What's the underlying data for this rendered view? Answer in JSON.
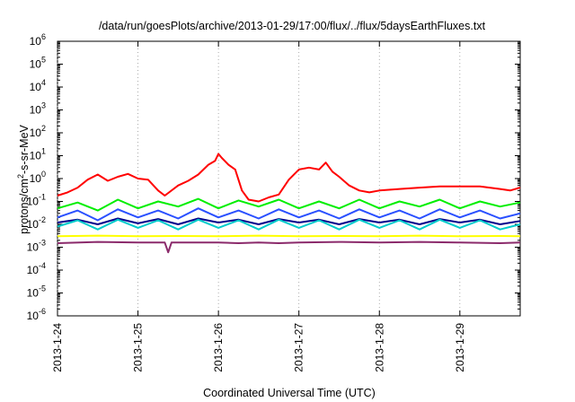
{
  "chart_data": {
    "type": "line",
    "title": "/data/run/goesPlots/archive/2013-01-29/17:00/flux/../flux/5daysEarthFluxes.txt",
    "xlabel": "Coordinated Universal Time (UTC)",
    "ylabel": {
      "base": "protons/cm",
      "sup": "2",
      "rest": "-s-sr-MeV"
    },
    "y_scale": "log",
    "xlim": [
      "2013-01-24T00:00",
      "2013-01-29T18:00"
    ],
    "ylim": [
      1e-06,
      1000000.0
    ],
    "x_ticks": [
      "2013-1-24",
      "2013-1-25",
      "2013-1-26",
      "2013-1-27",
      "2013-1-28",
      "2013-1-29"
    ],
    "y_ticks": [
      {
        "base": "10",
        "exp": "-6"
      },
      {
        "base": "10",
        "exp": "-5"
      },
      {
        "base": "10",
        "exp": "-4"
      },
      {
        "base": "10",
        "exp": "-3"
      },
      {
        "base": "10",
        "exp": "-2"
      },
      {
        "base": "10",
        "exp": "-1"
      },
      {
        "base": "10",
        "exp": "0"
      },
      {
        "base": "10",
        "exp": "1"
      },
      {
        "base": "10",
        "exp": "2"
      },
      {
        "base": "10",
        "exp": "3"
      },
      {
        "base": "10",
        "exp": "4"
      },
      {
        "base": "10",
        "exp": "5"
      },
      {
        "base": "10",
        "exp": "6"
      }
    ],
    "grid": "vertical dotted at day ticks",
    "legend": "none",
    "series": [
      {
        "color": "#ff0000",
        "points": [
          [
            "2013-01-24T00:00",
            0.18
          ],
          [
            "2013-01-24T03:00",
            0.25
          ],
          [
            "2013-01-24T06:00",
            0.4
          ],
          [
            "2013-01-24T09:00",
            0.9
          ],
          [
            "2013-01-24T12:00",
            1.5
          ],
          [
            "2013-01-24T15:00",
            0.8
          ],
          [
            "2013-01-24T18:00",
            1.2
          ],
          [
            "2013-01-24T21:00",
            1.6
          ],
          [
            "2013-01-25T00:00",
            1.0
          ],
          [
            "2013-01-25T03:00",
            0.9
          ],
          [
            "2013-01-25T06:00",
            0.3
          ],
          [
            "2013-01-25T08:00",
            0.18
          ],
          [
            "2013-01-25T12:00",
            0.5
          ],
          [
            "2013-01-25T15:00",
            0.8
          ],
          [
            "2013-01-25T18:00",
            1.5
          ],
          [
            "2013-01-25T21:00",
            4
          ],
          [
            "2013-01-25T23:00",
            6
          ],
          [
            "2013-01-26T00:00",
            12
          ],
          [
            "2013-01-26T01:00",
            8
          ],
          [
            "2013-01-26T03:00",
            4
          ],
          [
            "2013-01-26T05:00",
            2.5
          ],
          [
            "2013-01-26T07:00",
            0.3
          ],
          [
            "2013-01-26T09:00",
            0.12
          ],
          [
            "2013-01-26T12:00",
            0.1
          ],
          [
            "2013-01-26T15:00",
            0.15
          ],
          [
            "2013-01-26T18:00",
            0.2
          ],
          [
            "2013-01-26T21:00",
            0.9
          ],
          [
            "2013-01-27T00:00",
            2.5
          ],
          [
            "2013-01-27T03:00",
            3
          ],
          [
            "2013-01-27T06:00",
            2.5
          ],
          [
            "2013-01-27T08:00",
            5
          ],
          [
            "2013-01-27T10:00",
            2
          ],
          [
            "2013-01-27T12:00",
            1.2
          ],
          [
            "2013-01-27T15:00",
            0.5
          ],
          [
            "2013-01-27T18:00",
            0.3
          ],
          [
            "2013-01-27T21:00",
            0.25
          ],
          [
            "2013-01-28T00:00",
            0.3
          ],
          [
            "2013-01-28T06:00",
            0.35
          ],
          [
            "2013-01-28T12:00",
            0.4
          ],
          [
            "2013-01-28T18:00",
            0.45
          ],
          [
            "2013-01-29T00:00",
            0.45
          ],
          [
            "2013-01-29T06:00",
            0.45
          ],
          [
            "2013-01-29T12:00",
            0.35
          ],
          [
            "2013-01-29T15:00",
            0.3
          ],
          [
            "2013-01-29T18:00",
            0.4
          ]
        ]
      },
      {
        "color": "#00ee00",
        "points": [
          [
            "2013-01-24T00:00",
            0.05
          ],
          [
            "2013-01-24T06:00",
            0.09
          ],
          [
            "2013-01-24T12:00",
            0.04
          ],
          [
            "2013-01-24T18:00",
            0.12
          ],
          [
            "2013-01-25T00:00",
            0.05
          ],
          [
            "2013-01-25T06:00",
            0.1
          ],
          [
            "2013-01-25T12:00",
            0.06
          ],
          [
            "2013-01-25T18:00",
            0.13
          ],
          [
            "2013-01-26T00:00",
            0.05
          ],
          [
            "2013-01-26T06:00",
            0.11
          ],
          [
            "2013-01-26T12:00",
            0.06
          ],
          [
            "2013-01-26T18:00",
            0.12
          ],
          [
            "2013-01-27T00:00",
            0.05
          ],
          [
            "2013-01-27T06:00",
            0.1
          ],
          [
            "2013-01-27T12:00",
            0.05
          ],
          [
            "2013-01-27T18:00",
            0.12
          ],
          [
            "2013-01-28T00:00",
            0.05
          ],
          [
            "2013-01-28T06:00",
            0.1
          ],
          [
            "2013-01-28T12:00",
            0.06
          ],
          [
            "2013-01-28T18:00",
            0.12
          ],
          [
            "2013-01-29T00:00",
            0.05
          ],
          [
            "2013-01-29T06:00",
            0.1
          ],
          [
            "2013-01-29T12:00",
            0.06
          ],
          [
            "2013-01-29T18:00",
            0.09
          ]
        ]
      },
      {
        "color": "#2a50ff",
        "points": [
          [
            "2013-01-24T00:00",
            0.02
          ],
          [
            "2013-01-24T06:00",
            0.04
          ],
          [
            "2013-01-24T12:00",
            0.015
          ],
          [
            "2013-01-24T18:00",
            0.045
          ],
          [
            "2013-01-25T00:00",
            0.02
          ],
          [
            "2013-01-25T06:00",
            0.04
          ],
          [
            "2013-01-25T12:00",
            0.018
          ],
          [
            "2013-01-25T18:00",
            0.05
          ],
          [
            "2013-01-26T00:00",
            0.02
          ],
          [
            "2013-01-26T06:00",
            0.04
          ],
          [
            "2013-01-26T12:00",
            0.018
          ],
          [
            "2013-01-26T18:00",
            0.045
          ],
          [
            "2013-01-27T00:00",
            0.02
          ],
          [
            "2013-01-27T06:00",
            0.04
          ],
          [
            "2013-01-27T12:00",
            0.018
          ],
          [
            "2013-01-27T18:00",
            0.045
          ],
          [
            "2013-01-28T00:00",
            0.02
          ],
          [
            "2013-01-28T06:00",
            0.04
          ],
          [
            "2013-01-28T12:00",
            0.018
          ],
          [
            "2013-01-28T18:00",
            0.045
          ],
          [
            "2013-01-29T00:00",
            0.02
          ],
          [
            "2013-01-29T06:00",
            0.04
          ],
          [
            "2013-01-29T12:00",
            0.018
          ],
          [
            "2013-01-29T18:00",
            0.03
          ]
        ]
      },
      {
        "color": "#00008b",
        "points": [
          [
            "2013-01-24T00:00",
            0.012
          ],
          [
            "2013-01-24T06:00",
            0.016
          ],
          [
            "2013-01-24T12:00",
            0.01
          ],
          [
            "2013-01-24T18:00",
            0.018
          ],
          [
            "2013-01-25T00:00",
            0.011
          ],
          [
            "2013-01-25T06:00",
            0.017
          ],
          [
            "2013-01-25T12:00",
            0.01
          ],
          [
            "2013-01-25T18:00",
            0.018
          ],
          [
            "2013-01-26T00:00",
            0.012
          ],
          [
            "2013-01-26T06:00",
            0.016
          ],
          [
            "2013-01-26T12:00",
            0.01
          ],
          [
            "2013-01-26T18:00",
            0.017
          ],
          [
            "2013-01-27T00:00",
            0.012
          ],
          [
            "2013-01-27T06:00",
            0.016
          ],
          [
            "2013-01-27T12:00",
            0.01
          ],
          [
            "2013-01-27T18:00",
            0.017
          ],
          [
            "2013-01-28T00:00",
            0.012
          ],
          [
            "2013-01-28T06:00",
            0.016
          ],
          [
            "2013-01-28T12:00",
            0.01
          ],
          [
            "2013-01-28T18:00",
            0.017
          ],
          [
            "2013-01-29T00:00",
            0.012
          ],
          [
            "2013-01-29T06:00",
            0.016
          ],
          [
            "2013-01-29T12:00",
            0.01
          ],
          [
            "2013-01-29T18:00",
            0.014
          ]
        ]
      },
      {
        "color": "#00cccc",
        "points": [
          [
            "2013-01-24T00:00",
            0.008
          ],
          [
            "2013-01-24T06:00",
            0.015
          ],
          [
            "2013-01-24T12:00",
            0.006
          ],
          [
            "2013-01-24T18:00",
            0.016
          ],
          [
            "2013-01-25T00:00",
            0.007
          ],
          [
            "2013-01-25T06:00",
            0.015
          ],
          [
            "2013-01-25T12:00",
            0.006
          ],
          [
            "2013-01-25T18:00",
            0.016
          ],
          [
            "2013-01-26T00:00",
            0.007
          ],
          [
            "2013-01-26T06:00",
            0.015
          ],
          [
            "2013-01-26T12:00",
            0.006
          ],
          [
            "2013-01-26T18:00",
            0.016
          ],
          [
            "2013-01-27T00:00",
            0.007
          ],
          [
            "2013-01-27T06:00",
            0.015
          ],
          [
            "2013-01-27T12:00",
            0.006
          ],
          [
            "2013-01-27T18:00",
            0.016
          ],
          [
            "2013-01-28T00:00",
            0.007
          ],
          [
            "2013-01-28T06:00",
            0.015
          ],
          [
            "2013-01-28T12:00",
            0.006
          ],
          [
            "2013-01-28T18:00",
            0.016
          ],
          [
            "2013-01-29T00:00",
            0.007
          ],
          [
            "2013-01-29T06:00",
            0.015
          ],
          [
            "2013-01-29T12:00",
            0.006
          ],
          [
            "2013-01-29T18:00",
            0.01
          ]
        ]
      },
      {
        "color": "#ffff00",
        "points": [
          [
            "2013-01-24T00:00",
            0.003
          ],
          [
            "2013-01-24T12:00",
            0.0032
          ],
          [
            "2013-01-25T00:00",
            0.003
          ],
          [
            "2013-01-25T12:00",
            0.0031
          ],
          [
            "2013-01-26T00:00",
            0.003
          ],
          [
            "2013-01-26T12:00",
            0.0032
          ],
          [
            "2013-01-27T00:00",
            0.003
          ],
          [
            "2013-01-27T12:00",
            0.0031
          ],
          [
            "2013-01-28T00:00",
            0.003
          ],
          [
            "2013-01-28T12:00",
            0.0032
          ],
          [
            "2013-01-29T00:00",
            0.003
          ],
          [
            "2013-01-29T12:00",
            0.0031
          ],
          [
            "2013-01-29T18:00",
            0.003
          ]
        ]
      },
      {
        "color": "#8b2a6b",
        "points": [
          [
            "2013-01-24T00:00",
            0.0015
          ],
          [
            "2013-01-24T12:00",
            0.0017
          ],
          [
            "2013-01-25T00:00",
            0.0016
          ],
          [
            "2013-01-25T08:00",
            0.0016
          ],
          [
            "2013-01-25T09:00",
            0.0006
          ],
          [
            "2013-01-25T10:00",
            0.0016
          ],
          [
            "2013-01-26T00:00",
            0.0016
          ],
          [
            "2013-01-26T06:00",
            0.0015
          ],
          [
            "2013-01-26T12:00",
            0.0016
          ],
          [
            "2013-01-26T18:00",
            0.0015
          ],
          [
            "2013-01-27T00:00",
            0.0016
          ],
          [
            "2013-01-27T12:00",
            0.0017
          ],
          [
            "2013-01-28T00:00",
            0.0016
          ],
          [
            "2013-01-28T12:00",
            0.0017
          ],
          [
            "2013-01-29T00:00",
            0.0016
          ],
          [
            "2013-01-29T12:00",
            0.0015
          ],
          [
            "2013-01-29T18:00",
            0.0016
          ]
        ]
      }
    ]
  }
}
